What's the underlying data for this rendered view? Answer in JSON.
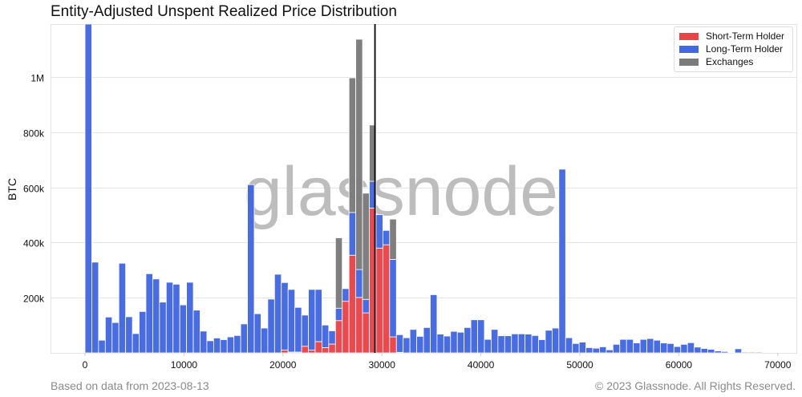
{
  "title": "Entity-Adjusted Unspent Realized Price Distribution",
  "footer": {
    "source": "Based on data from 2023-08-13",
    "copyright": "© 2023 Glassnode. All Rights Reserved."
  },
  "watermark": "glassnode",
  "colors": {
    "sth": "#e8444a",
    "lth": "#4368e0",
    "exchanges": "#7b7b7b",
    "price_line": "#000000"
  },
  "chart_data": {
    "type": "bar",
    "stacked": true,
    "title": "Entity-Adjusted Unspent Realized Price Distribution",
    "xlabel": "",
    "ylabel": "BTC",
    "xlim": [
      -3500,
      72000
    ],
    "ylim": [
      0,
      1192000
    ],
    "x_ticks": [
      0,
      10000,
      20000,
      30000,
      40000,
      50000,
      60000,
      70000
    ],
    "x_tick_labels": [
      "0",
      "10000",
      "20000",
      "30000",
      "40000",
      "50000",
      "60000",
      "70000"
    ],
    "y_ticks": [
      200000,
      400000,
      600000,
      800000,
      1000000
    ],
    "y_tick_labels": [
      "200k",
      "400k",
      "600k",
      "800k",
      "1M"
    ],
    "grid": true,
    "legend_position": "top-right",
    "bin_width": 684,
    "value_multiplier": 1000,
    "current_price_line": 29300,
    "series": [
      {
        "name": "Short-Term Holder",
        "key": "sth",
        "values": [
          0,
          0,
          0,
          0,
          0,
          0,
          0,
          0,
          0,
          0,
          0,
          0,
          0,
          0,
          0,
          0,
          0,
          0,
          0,
          0,
          0,
          0,
          0,
          0,
          0,
          0,
          0,
          0,
          0,
          10,
          3,
          3,
          24,
          10,
          41,
          19,
          32,
          117,
          187,
          354,
          201,
          145,
          525,
          380,
          392,
          58,
          2,
          0,
          0,
          0,
          0,
          0,
          0,
          0,
          0,
          0,
          0,
          0,
          0,
          0,
          0,
          0,
          0,
          0,
          0,
          0,
          0,
          0,
          0,
          0,
          0,
          0,
          0,
          0,
          0,
          0,
          0,
          0,
          0,
          0,
          0,
          0,
          0,
          0,
          0,
          0,
          0,
          0,
          0,
          0,
          0,
          0,
          0,
          0,
          0,
          0,
          0,
          0,
          0,
          0
        ]
      },
      {
        "name": "Long-Term Holder",
        "key": "lth",
        "values": [
          1250,
          329,
          46,
          130,
          110,
          325,
          131,
          70,
          150,
          287,
          268,
          184,
          256,
          249,
          174,
          256,
          155,
          79,
          44,
          54,
          48,
          58,
          63,
          105,
          610,
          142,
          90,
          195,
          285,
          245,
          227,
          162,
          113,
          220,
          189,
          82,
          48,
          45,
          46,
          155,
          101,
          49,
          97,
          121,
          52,
          281,
          64,
          55,
          85,
          60,
          92,
          211,
          68,
          61,
          78,
          75,
          92,
          120,
          120,
          49,
          85,
          62,
          62,
          69,
          69,
          68,
          63,
          48,
          82,
          90,
          666,
          55,
          34,
          39,
          19,
          17,
          22,
          11,
          31,
          49,
          49,
          36,
          49,
          52,
          46,
          36,
          34,
          23,
          31,
          37,
          21,
          16,
          13,
          7,
          5,
          2,
          15,
          3,
          3,
          3
        ]
      },
      {
        "name": "Exchanges",
        "key": "exchanges",
        "values": [
          0,
          0,
          0,
          0,
          0,
          0,
          0,
          0,
          0,
          0,
          0,
          0,
          0,
          0,
          0,
          0,
          0,
          0,
          0,
          0,
          0,
          0,
          0,
          0,
          0,
          0,
          0,
          0,
          0,
          0,
          0,
          0,
          0,
          0,
          0,
          0,
          0,
          255,
          0,
          488,
          835,
          385,
          204,
          0,
          0,
          146,
          0,
          0,
          0,
          0,
          0,
          0,
          0,
          0,
          0,
          0,
          0,
          0,
          0,
          0,
          0,
          0,
          0,
          0,
          0,
          0,
          0,
          0,
          0,
          0,
          0,
          0,
          0,
          0,
          0,
          0,
          0,
          0,
          0,
          0,
          0,
          0,
          0,
          0,
          0,
          0,
          0,
          0,
          0,
          0,
          0,
          0,
          0,
          0,
          0,
          0,
          0,
          0,
          0,
          0
        ]
      }
    ]
  }
}
